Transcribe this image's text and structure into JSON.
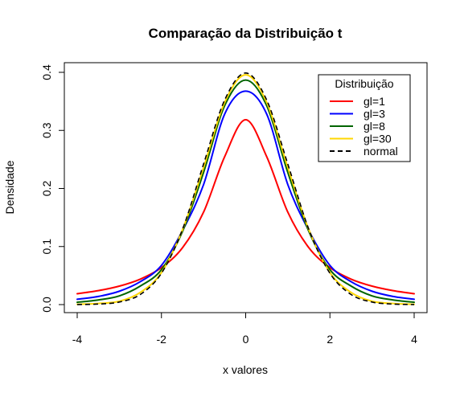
{
  "chart_data": {
    "type": "line",
    "title": "Comparação da Distribuição t",
    "xlabel": "x valores",
    "ylabel": "Densidade",
    "xlim": [
      -4,
      4
    ],
    "ylim": [
      0,
      0.4
    ],
    "x_ticks": [
      -4,
      -2,
      0,
      2,
      4
    ],
    "x_tick_labels": [
      "-4",
      "-2",
      "0",
      "2",
      "4"
    ],
    "y_ticks": [
      0.0,
      0.1,
      0.2,
      0.3,
      0.4
    ],
    "y_tick_labels": [
      "0.0",
      "0.1",
      "0.2",
      "0.3",
      "0.4"
    ],
    "grid": false,
    "legend_title": "Distribuição",
    "legend_position": "top-right",
    "x": [
      -4,
      -3.5,
      -3,
      -2.5,
      -2,
      -1.5,
      -1,
      -0.5,
      0,
      0.5,
      1,
      1.5,
      2,
      2.5,
      3,
      3.5,
      4
    ],
    "series": [
      {
        "name": "gl=1",
        "color": "#ff0000",
        "dash": "solid",
        "values": [
          0.0187,
          0.024,
          0.0318,
          0.0439,
          0.0637,
          0.0979,
          0.1592,
          0.2546,
          0.3183,
          0.2546,
          0.1592,
          0.0979,
          0.0637,
          0.0439,
          0.0318,
          0.024,
          0.0187
        ]
      },
      {
        "name": "gl=3",
        "color": "#0000ff",
        "dash": "solid",
        "values": [
          0.0092,
          0.014,
          0.023,
          0.0395,
          0.0675,
          0.1274,
          0.2067,
          0.3279,
          0.3676,
          0.3279,
          0.2067,
          0.1274,
          0.0675,
          0.0395,
          0.023,
          0.014,
          0.0092
        ]
      },
      {
        "name": "gl=8",
        "color": "#006400",
        "dash": "solid",
        "values": [
          0.004,
          0.008,
          0.015,
          0.032,
          0.0602,
          0.126,
          0.2276,
          0.3424,
          0.3867,
          0.3424,
          0.2276,
          0.126,
          0.0602,
          0.032,
          0.015,
          0.008,
          0.004
        ]
      },
      {
        "name": "gl=30",
        "color": "#ffd700",
        "dash": "solid",
        "values": [
          0.0005,
          0.002,
          0.0057,
          0.021,
          0.0551,
          0.129,
          0.236,
          0.348,
          0.3956,
          0.348,
          0.236,
          0.129,
          0.0551,
          0.021,
          0.0057,
          0.002,
          0.0005
        ]
      },
      {
        "name": "normal",
        "color": "#000000",
        "dash": "dashed",
        "values": [
          0.0001,
          0.0009,
          0.0044,
          0.0175,
          0.054,
          0.1295,
          0.242,
          0.3521,
          0.3989,
          0.3521,
          0.242,
          0.1295,
          0.054,
          0.0175,
          0.0044,
          0.0009,
          0.0001
        ]
      }
    ]
  }
}
